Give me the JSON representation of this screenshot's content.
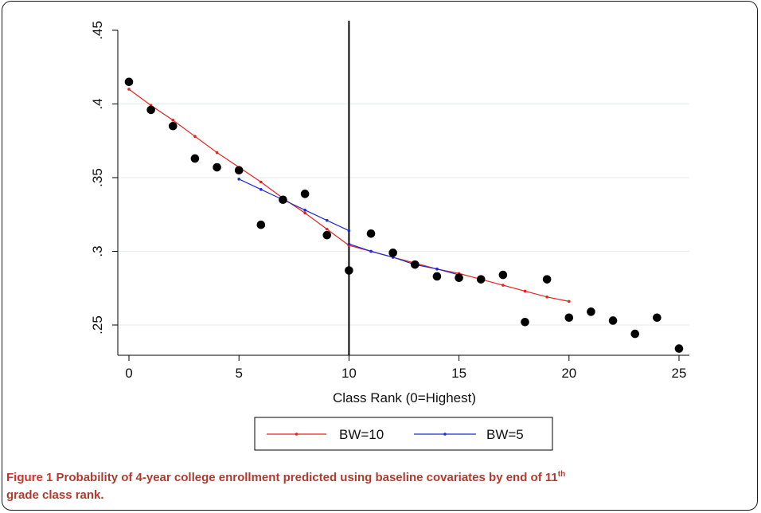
{
  "chart_data": {
    "type": "scatter",
    "xlabel": "Class Rank (0=Highest)",
    "ylabel": "",
    "xlim": [
      -0.5,
      25.5
    ],
    "ylim": [
      0.225,
      0.45
    ],
    "xticks": [
      0,
      5,
      10,
      15,
      20,
      25
    ],
    "xtick_labels": [
      "0",
      "5",
      "10",
      "15",
      "20",
      "25"
    ],
    "yticks": [
      0.25,
      0.3,
      0.35,
      0.4,
      0.45
    ],
    "ytick_labels": [
      ".25",
      ".3",
      ".35",
      ".4",
      ".45"
    ],
    "grid": "horizontal",
    "cutoff_line_x": 10,
    "points": {
      "x": [
        0,
        1,
        2,
        3,
        4,
        5,
        6,
        7,
        8,
        9,
        10,
        11,
        12,
        13,
        14,
        15,
        16,
        17,
        18,
        19,
        20,
        21,
        22,
        23,
        24,
        25
      ],
      "y": [
        0.415,
        0.396,
        0.385,
        0.363,
        0.357,
        0.355,
        0.318,
        0.335,
        0.339,
        0.311,
        0.287,
        0.312,
        0.299,
        0.291,
        0.283,
        0.282,
        0.281,
        0.284,
        0.252,
        0.281,
        0.255,
        0.259,
        0.253,
        0.244,
        0.255,
        0.234
      ]
    },
    "series": [
      {
        "name": "BW=10",
        "color": "#e8231e",
        "segments": [
          {
            "x": [
              0,
              1,
              2,
              3,
              4,
              5,
              6,
              7,
              8,
              9,
              10
            ],
            "y": [
              0.41,
              0.399,
              0.389,
              0.378,
              0.367,
              0.357,
              0.347,
              0.336,
              0.326,
              0.315,
              0.304
            ]
          },
          {
            "x": [
              10,
              11,
              12,
              13,
              14,
              15,
              16,
              17,
              18,
              19,
              20
            ],
            "y": [
              0.304,
              0.3,
              0.296,
              0.292,
              0.288,
              0.285,
              0.281,
              0.277,
              0.273,
              0.269,
              0.266
            ]
          }
        ]
      },
      {
        "name": "BW=5",
        "color": "#1f2bd4",
        "segments": [
          {
            "x": [
              5,
              6,
              7,
              8,
              9,
              10
            ],
            "y": [
              0.349,
              0.342,
              0.335,
              0.328,
              0.321,
              0.314
            ]
          },
          {
            "x": [
              10,
              11,
              12,
              13,
              14,
              15
            ],
            "y": [
              0.305,
              0.3,
              0.296,
              0.291,
              0.288,
              0.284
            ]
          }
        ]
      }
    ],
    "legend": "bottom"
  },
  "caption": {
    "label": "Figure 1",
    "text": "Probability of 4-year college enrollment predicted using baseline covariates by end of 11",
    "sup": "th",
    "text2": "grade class rank."
  }
}
